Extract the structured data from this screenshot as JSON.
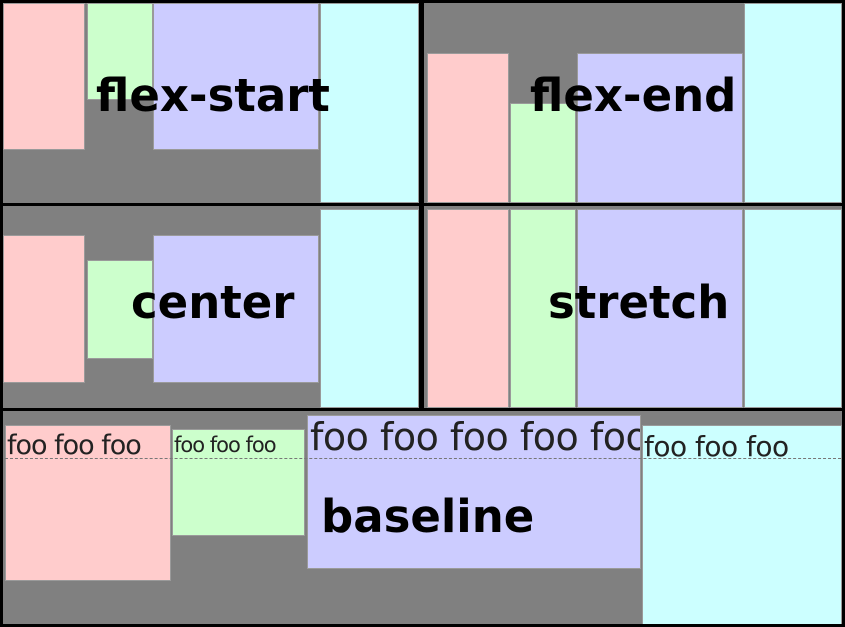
{
  "colors": {
    "panel_bg": "#808080",
    "border": "#000000",
    "pink": "#ffcccc",
    "green": "#ccffcc",
    "lavender": "#ccccff",
    "cyan": "#ccffff"
  },
  "panels": {
    "flex_start": {
      "label": "flex-start"
    },
    "flex_end": {
      "label": "flex-end"
    },
    "center": {
      "label": "center"
    },
    "stretch": {
      "label": "stretch"
    },
    "baseline": {
      "label": "baseline",
      "items": [
        {
          "text": "foo foo foo"
        },
        {
          "text": "foo foo foo"
        },
        {
          "text": "foo foo foo foo foo"
        },
        {
          "text": "foo foo foo"
        }
      ]
    }
  }
}
